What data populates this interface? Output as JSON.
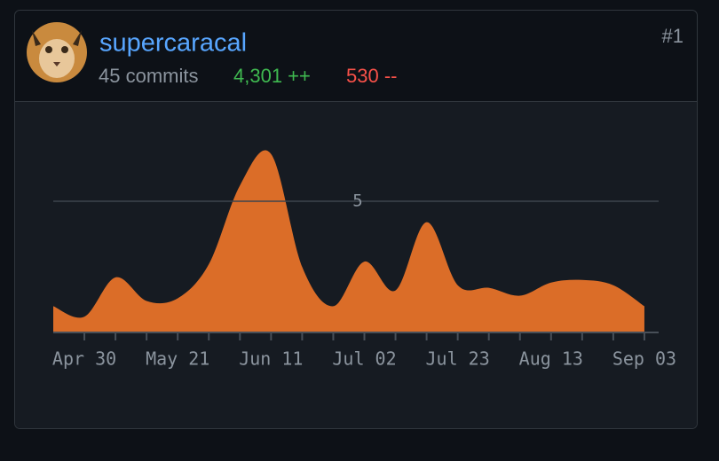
{
  "header": {
    "user": "supercaracal",
    "commits": "45 commits",
    "additions": "4,301 ++",
    "deletions": "530 --",
    "rank": "#1"
  },
  "chart_data": {
    "type": "area",
    "color": "#db6d28",
    "categories": [
      null,
      "Apr 30",
      null,
      null,
      "May 21",
      null,
      null,
      "Jun 11",
      null,
      null,
      "Jul 02",
      null,
      null,
      "Jul 23",
      null,
      null,
      "Aug 13",
      null,
      null,
      "Sep 03"
    ],
    "values": [
      1.0,
      0.6,
      2.1,
      1.2,
      1.3,
      2.6,
      5.6,
      6.8,
      2.5,
      1.0,
      2.7,
      1.6,
      4.2,
      1.8,
      1.7,
      1.4,
      1.9,
      2.0,
      1.8,
      1.0
    ],
    "ylim": [
      0,
      7.5
    ],
    "yticks": [
      5
    ],
    "grid": true
  }
}
